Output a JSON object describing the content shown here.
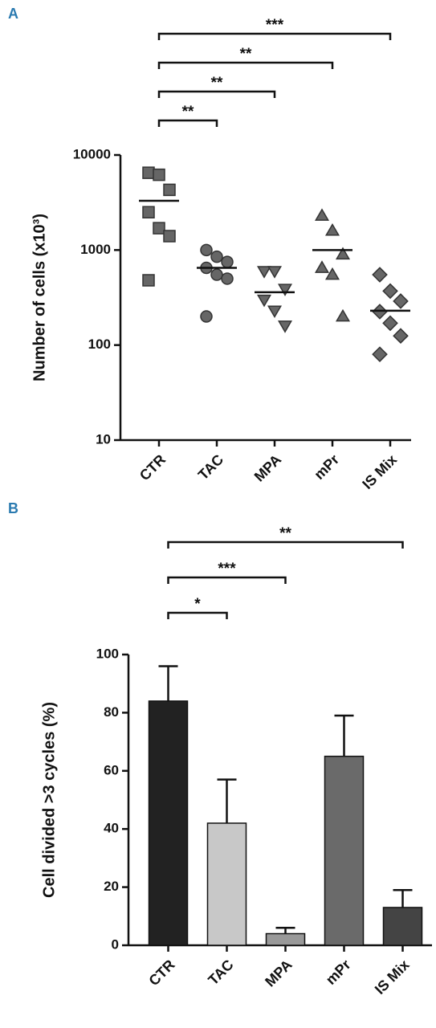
{
  "chart_data": [
    {
      "type": "strip",
      "panel": "A",
      "y_label": "Number of cells (x10³)",
      "categories": [
        "CTR",
        "TAC",
        "MPA",
        "mPr",
        "IS Mix"
      ],
      "markers": [
        "square",
        "circle",
        "triangle-down",
        "triangle-up",
        "diamond"
      ],
      "color": "#666666",
      "points": [
        [
          6500,
          6200,
          4300,
          2500,
          1700,
          1400,
          480
        ],
        [
          1000,
          850,
          750,
          650,
          550,
          500,
          200
        ],
        [
          600,
          600,
          390,
          300,
          230,
          160
        ],
        [
          2300,
          1600,
          900,
          650,
          550,
          200
        ],
        [
          550,
          370,
          290,
          225,
          170,
          125,
          80
        ]
      ],
      "means": [
        3300,
        650,
        360,
        1000,
        230
      ],
      "log_scale": true,
      "ylim": [
        10,
        10000
      ],
      "yticks": [
        10,
        100,
        1000,
        10000
      ],
      "annotations": [
        {
          "from": 0,
          "to": 1,
          "label": "**"
        },
        {
          "from": 0,
          "to": 2,
          "label": "**"
        },
        {
          "from": 0,
          "to": 3,
          "label": "**"
        },
        {
          "from": 0,
          "to": 4,
          "label": "***"
        }
      ]
    },
    {
      "type": "bar",
      "panel": "B",
      "y_label": "Cell divided >3 cycles (%)",
      "categories": [
        "CTR",
        "TAC",
        "MPA",
        "mPr",
        "IS Mix"
      ],
      "values": [
        84,
        42,
        4,
        65,
        13
      ],
      "errors": [
        12,
        15,
        2,
        14,
        6
      ],
      "colors": [
        "#222222",
        "#c8c8c8",
        "#999999",
        "#6a6a6a",
        "#444444"
      ],
      "ylim": [
        0,
        100
      ],
      "yticks": [
        0,
        20,
        40,
        60,
        80,
        100
      ],
      "annotations": [
        {
          "from": 0,
          "to": 1,
          "label": "*"
        },
        {
          "from": 0,
          "to": 2,
          "label": "***"
        },
        {
          "from": 0,
          "to": 4,
          "label": "**"
        }
      ]
    }
  ]
}
